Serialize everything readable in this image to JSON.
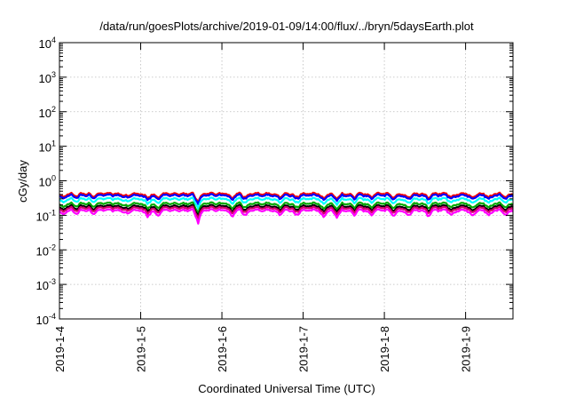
{
  "chart_data": {
    "type": "line",
    "title": "/data/run/goesPlots/archive/2019-01-09/14:00/flux/../bryn/5daysEarth.plot",
    "xlabel": "Coordinated Universal Time (UTC)",
    "ylabel": "cGy/day",
    "x_range": [
      "2019-01-04",
      "2019-01-09T14:00"
    ],
    "x_ticks": [
      "2019-1-4",
      "2019-1-5",
      "2019-1-6",
      "2019-1-7",
      "2019-1-8",
      "2019-1-9"
    ],
    "y_scale": "log",
    "ylim": [
      0.0001,
      10000
    ],
    "y_ticks": [
      {
        "base": "10",
        "exp": "-4",
        "value": 0.0001
      },
      {
        "base": "10",
        "exp": "-3",
        "value": 0.001
      },
      {
        "base": "10",
        "exp": "-2",
        "value": 0.01
      },
      {
        "base": "10",
        "exp": "-1",
        "value": 0.1
      },
      {
        "base": "10",
        "exp": "0",
        "value": 1
      },
      {
        "base": "10",
        "exp": "1",
        "value": 10
      },
      {
        "base": "10",
        "exp": "2",
        "value": 100
      },
      {
        "base": "10",
        "exp": "3",
        "value": 1000
      },
      {
        "base": "10",
        "exp": "4",
        "value": 10000
      }
    ],
    "grid": true,
    "legend": "none",
    "series": [
      {
        "color": "#ff0000",
        "base": 0.42,
        "dip_depth": 0.55
      },
      {
        "color": "#0000ff",
        "base": 0.38,
        "dip_depth": 0.55
      },
      {
        "color": "#00ffff",
        "base": 0.3,
        "dip_depth": 0.6
      },
      {
        "color": "#00aa00",
        "base": 0.22,
        "dip_depth": 0.62
      },
      {
        "color": "#000000",
        "base": 0.185,
        "dip_depth": 0.65
      },
      {
        "color": "#d4006e",
        "base": 0.165,
        "dip_depth": 0.68
      },
      {
        "color": "#ff00ff",
        "base": 0.14,
        "dip_depth": 0.75
      }
    ],
    "dips": [
      {
        "t": "2019-01-04T01:00",
        "factor": 0.65
      },
      {
        "t": "2019-01-04T05:00",
        "factor": 0.7
      },
      {
        "t": "2019-01-04T10:00",
        "factor": 0.75
      },
      {
        "t": "2019-01-04T20:00",
        "factor": 0.7
      },
      {
        "t": "2019-01-05T02:00",
        "factor": 0.5
      },
      {
        "t": "2019-01-05T05:00",
        "factor": 0.55
      },
      {
        "t": "2019-01-05T17:00",
        "factor": 0.25
      },
      {
        "t": "2019-01-06T03:00",
        "factor": 0.55
      },
      {
        "t": "2019-01-06T07:00",
        "factor": 0.6
      },
      {
        "t": "2019-01-06T17:00",
        "factor": 0.7
      },
      {
        "t": "2019-01-06T22:00",
        "factor": 0.6
      },
      {
        "t": "2019-01-07T06:00",
        "factor": 0.5
      },
      {
        "t": "2019-01-07T10:00",
        "factor": 0.55
      },
      {
        "t": "2019-01-07T15:00",
        "factor": 0.65
      },
      {
        "t": "2019-01-07T20:00",
        "factor": 0.6
      },
      {
        "t": "2019-01-08T03:00",
        "factor": 0.55
      },
      {
        "t": "2019-01-08T07:00",
        "factor": 0.6
      },
      {
        "t": "2019-01-08T13:00",
        "factor": 0.55
      },
      {
        "t": "2019-01-08T20:00",
        "factor": 0.6
      },
      {
        "t": "2019-01-09T02:00",
        "factor": 0.55
      },
      {
        "t": "2019-01-09T07:00",
        "factor": 0.6
      },
      {
        "t": "2019-01-09T12:00",
        "factor": 0.65
      }
    ]
  }
}
